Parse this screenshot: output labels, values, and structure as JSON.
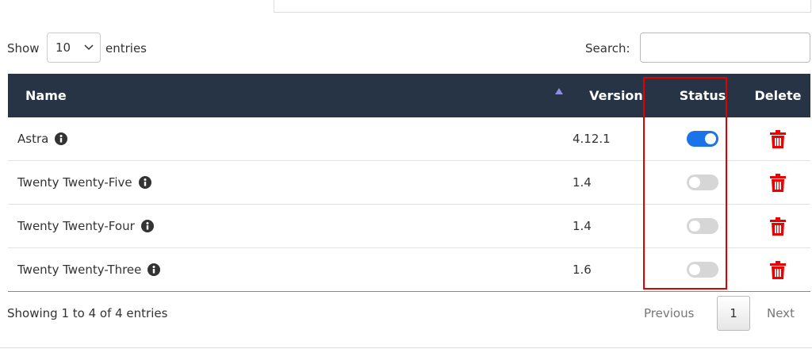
{
  "controls": {
    "show": "Show",
    "length": "10",
    "entries": "entries",
    "search": "Search:"
  },
  "table": {
    "headers": [
      "Name",
      "Version",
      "Status",
      "Delete"
    ],
    "rows": [
      {
        "name": "Astra",
        "version": "4.12.1",
        "enabled": true
      },
      {
        "name": "Twenty Twenty-Five",
        "version": "1.4",
        "enabled": false
      },
      {
        "name": "Twenty Twenty-Four",
        "version": "1.4",
        "enabled": false
      },
      {
        "name": "Twenty Twenty-Three",
        "version": "1.6",
        "enabled": false
      }
    ]
  },
  "footer": {
    "info": "Showing 1 to 4 of 4 entries",
    "previous": "Previous",
    "page": "1",
    "next": "Next"
  }
}
